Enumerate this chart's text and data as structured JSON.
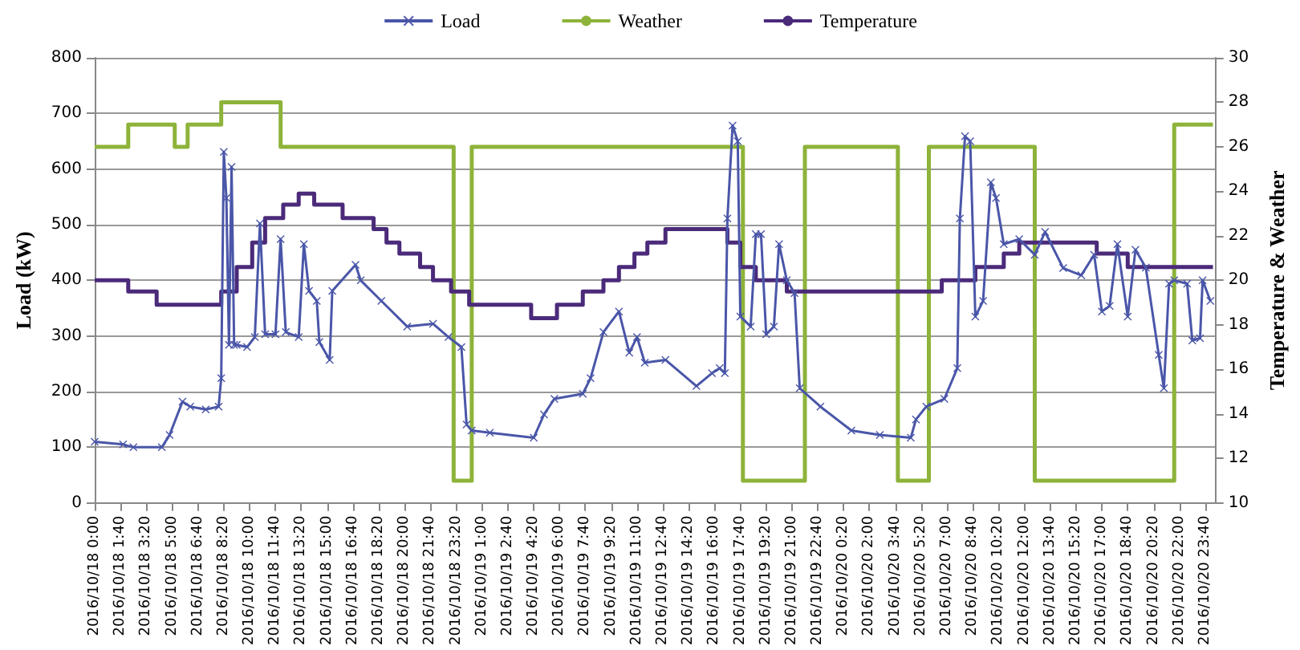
{
  "chart_data": {
    "type": "line",
    "ylabel": "Load (kW)",
    "y2label": "Temperature & Weather",
    "legend": "top",
    "grid": "y",
    "xlim": [
      "2016-10-18T00:00",
      "2016-10-21T00:20"
    ],
    "xticks": [
      {
        "value": "2016-10-18T00:00",
        "label": "2016/10/18 0:00"
      },
      {
        "value": "2016-10-18T01:40",
        "label": "2016/10/18 1:40"
      },
      {
        "value": "2016-10-18T03:20",
        "label": "2016/10/18 3:20"
      },
      {
        "value": "2016-10-18T05:00",
        "label": "2016/10/18 5:00"
      },
      {
        "value": "2016-10-18T06:40",
        "label": "2016/10/18 6:40"
      },
      {
        "value": "2016-10-18T08:20",
        "label": "2016/10/18 8:20"
      },
      {
        "value": "2016-10-18T10:00",
        "label": "2016/10/18 10:00"
      },
      {
        "value": "2016-10-18T11:40",
        "label": "2016/10/18 11:40"
      },
      {
        "value": "2016-10-18T13:20",
        "label": "2016/10/18 13:20"
      },
      {
        "value": "2016-10-18T15:00",
        "label": "2016/10/18 15:00"
      },
      {
        "value": "2016-10-18T16:40",
        "label": "2016/10/18 16:40"
      },
      {
        "value": "2016-10-18T18:20",
        "label": "2016/10/18 18:20"
      },
      {
        "value": "2016-10-18T20:00",
        "label": "2016/10/18 20:00"
      },
      {
        "value": "2016-10-18T21:40",
        "label": "2016/10/18 21:40"
      },
      {
        "value": "2016-10-18T23:20",
        "label": "2016/10/18 23:20"
      },
      {
        "value": "2016-10-19T01:00",
        "label": "2016/10/19 1:00"
      },
      {
        "value": "2016-10-19T02:40",
        "label": "2016/10/19 2:40"
      },
      {
        "value": "2016-10-19T04:20",
        "label": "2016/10/19 4:20"
      },
      {
        "value": "2016-10-19T06:00",
        "label": "2016/10/19 6:00"
      },
      {
        "value": "2016-10-19T07:40",
        "label": "2016/10/19 7:40"
      },
      {
        "value": "2016-10-19T09:20",
        "label": "2016/10/19 9:20"
      },
      {
        "value": "2016-10-19T11:00",
        "label": "2016/10/19 11:00"
      },
      {
        "value": "2016-10-19T12:40",
        "label": "2016/10/19 12:40"
      },
      {
        "value": "2016-10-19T14:20",
        "label": "2016/10/19 14:20"
      },
      {
        "value": "2016-10-19T16:00",
        "label": "2016/10/19 16:00"
      },
      {
        "value": "2016-10-19T17:40",
        "label": "2016/10/19 17:40"
      },
      {
        "value": "2016-10-19T19:20",
        "label": "2016/10/19 19:20"
      },
      {
        "value": "2016-10-19T21:00",
        "label": "2016/10/19 21:00"
      },
      {
        "value": "2016-10-19T22:40",
        "label": "2016/10/19 22:40"
      },
      {
        "value": "2016-10-20T00:20",
        "label": "2016/10/20 0:20"
      },
      {
        "value": "2016-10-20T02:00",
        "label": "2016/10/20 2:00"
      },
      {
        "value": "2016-10-20T03:40",
        "label": "2016/10/20 3:40"
      },
      {
        "value": "2016-10-20T05:20",
        "label": "2016/10/20 5:20"
      },
      {
        "value": "2016-10-20T07:00",
        "label": "2016/10/20 7:00"
      },
      {
        "value": "2016-10-20T08:40",
        "label": "2016/10/20 8:40"
      },
      {
        "value": "2016-10-20T10:20",
        "label": "2016/10/20 10:20"
      },
      {
        "value": "2016-10-20T12:00",
        "label": "2016/10/20 12:00"
      },
      {
        "value": "2016-10-20T13:40",
        "label": "2016/10/20 13:40"
      },
      {
        "value": "2016-10-20T15:20",
        "label": "2016/10/20 15:20"
      },
      {
        "value": "2016-10-20T17:00",
        "label": "2016/10/20 17:00"
      },
      {
        "value": "2016-10-20T18:40",
        "label": "2016/10/20 18:40"
      },
      {
        "value": "2016-10-20T20:20",
        "label": "2016/10/20 20:20"
      },
      {
        "value": "2016-10-20T22:00",
        "label": "2016/10/20 22:00"
      },
      {
        "value": "2016-10-20T23:40",
        "label": "2016/10/20 23:40"
      }
    ],
    "ylim": [
      0,
      800
    ],
    "yticks": [
      0,
      100,
      200,
      300,
      400,
      500,
      600,
      700,
      800
    ],
    "y2lim": [
      10,
      30
    ],
    "y2ticks": [
      10,
      12,
      14,
      16,
      18,
      20,
      22,
      24,
      26,
      28,
      30
    ],
    "series": [
      {
        "name": "Load",
        "color": "#4a56a8",
        "marker": "cross",
        "x": [
          "2016-10-18T00:00",
          "2016-10-18T01:50",
          "2016-10-18T02:30",
          "2016-10-18T04:20",
          "2016-10-18T04:50",
          "2016-10-18T05:40",
          "2016-10-18T06:10",
          "2016-10-18T07:10",
          "2016-10-18T08:00",
          "2016-10-18T08:10",
          "2016-10-18T08:20",
          "2016-10-18T08:30",
          "2016-10-18T08:40",
          "2016-10-18T08:50",
          "2016-10-18T09:00",
          "2016-10-18T09:10",
          "2016-10-18T09:50",
          "2016-10-18T10:20",
          "2016-10-18T10:40",
          "2016-10-18T11:00",
          "2016-10-18T11:40",
          "2016-10-18T12:00",
          "2016-10-18T12:20",
          "2016-10-18T13:10",
          "2016-10-18T13:30",
          "2016-10-18T13:50",
          "2016-10-18T14:20",
          "2016-10-18T14:30",
          "2016-10-18T15:10",
          "2016-10-18T15:20",
          "2016-10-18T16:50",
          "2016-10-18T17:10",
          "2016-10-18T18:30",
          "2016-10-18T20:10",
          "2016-10-18T21:50",
          "2016-10-18T22:50",
          "2016-10-18T23:40",
          "2016-10-19T00:00",
          "2016-10-19T00:20",
          "2016-10-19T01:30",
          "2016-10-19T04:20",
          "2016-10-19T05:00",
          "2016-10-19T05:40",
          "2016-10-19T07:30",
          "2016-10-19T08:00",
          "2016-10-19T08:50",
          "2016-10-19T09:50",
          "2016-10-19T10:30",
          "2016-10-19T11:00",
          "2016-10-19T11:30",
          "2016-10-19T12:50",
          "2016-10-19T14:50",
          "2016-10-19T15:50",
          "2016-10-19T16:20",
          "2016-10-19T16:40",
          "2016-10-19T16:50",
          "2016-10-19T17:10",
          "2016-10-19T17:30",
          "2016-10-19T17:40",
          "2016-10-19T18:20",
          "2016-10-19T18:40",
          "2016-10-19T19:00",
          "2016-10-19T19:20",
          "2016-10-19T19:50",
          "2016-10-19T20:10",
          "2016-10-19T20:40",
          "2016-10-19T21:10",
          "2016-10-19T21:30",
          "2016-10-19T22:50",
          "2016-10-20T00:50",
          "2016-10-20T02:40",
          "2016-10-20T04:40",
          "2016-10-20T05:00",
          "2016-10-20T05:40",
          "2016-10-20T06:50",
          "2016-10-20T07:40",
          "2016-10-20T07:50",
          "2016-10-20T08:10",
          "2016-10-20T08:30",
          "2016-10-20T08:50",
          "2016-10-20T09:20",
          "2016-10-20T09:50",
          "2016-10-20T10:10",
          "2016-10-20T10:40",
          "2016-10-20T11:40",
          "2016-10-20T12:40",
          "2016-10-20T13:20",
          "2016-10-20T14:30",
          "2016-10-20T15:40",
          "2016-10-20T16:30",
          "2016-10-20T17:00",
          "2016-10-20T17:30",
          "2016-10-20T18:00",
          "2016-10-20T18:40",
          "2016-10-20T19:10",
          "2016-10-20T19:50",
          "2016-10-20T20:40",
          "2016-10-20T21:00",
          "2016-10-20T21:20",
          "2016-10-20T21:40",
          "2016-10-20T22:30",
          "2016-10-20T22:50",
          "2016-10-20T23:20",
          "2016-10-20T23:30",
          "2016-10-21T00:00"
        ],
        "values": [
          110,
          105,
          100,
          100,
          122,
          182,
          173,
          168,
          173,
          224,
          631,
          548,
          284,
          604,
          284,
          284,
          280,
          298,
          502,
          303,
          303,
          474,
          307,
          298,
          465,
          381,
          363,
          289,
          257,
          381,
          428,
          400,
          363,
          317,
          322,
          298,
          280,
          141,
          130,
          126,
          117,
          159,
          187,
          196,
          224,
          307,
          344,
          270,
          298,
          252,
          257,
          210,
          233,
          242,
          233,
          511,
          678,
          650,
          335,
          317,
          483,
          483,
          303,
          317,
          465,
          400,
          377,
          206,
          173,
          130,
          122,
          117,
          150,
          173,
          187,
          242,
          511,
          659,
          650,
          335,
          363,
          576,
          548,
          465,
          474,
          446,
          487,
          422,
          409,
          446,
          344,
          354,
          465,
          335,
          455,
          423,
          266,
          206,
          394,
          400,
          394,
          292,
          296,
          400,
          363
        ]
      },
      {
        "name": "Weather",
        "type": "step",
        "axis": "y2",
        "color": "#8db33a",
        "marker": "none",
        "x": [
          "2016-10-18T00:00",
          "2016-10-18T02:10",
          "2016-10-18T05:10",
          "2016-10-18T06:00",
          "2016-10-18T08:10",
          "2016-10-18T12:00",
          "2016-10-18T23:10",
          "2016-10-19T00:20",
          "2016-10-19T17:50",
          "2016-10-19T21:50",
          "2016-10-20T03:50",
          "2016-10-20T05:50",
          "2016-10-20T12:40",
          "2016-10-20T21:40",
          "2016-10-21T00:10"
        ],
        "values": [
          26,
          27,
          26,
          27,
          28,
          26,
          11,
          26,
          11,
          26,
          11,
          26,
          11,
          27,
          27
        ]
      },
      {
        "name": "Temperature",
        "type": "step",
        "axis": "y2",
        "color": "#4b2a7a",
        "marker": "none",
        "x": [
          "2016-10-18T00:00",
          "2016-10-18T02:10",
          "2016-10-18T04:00",
          "2016-10-18T08:10",
          "2016-10-18T09:10",
          "2016-10-18T10:10",
          "2016-10-18T11:00",
          "2016-10-18T12:10",
          "2016-10-18T13:10",
          "2016-10-18T14:10",
          "2016-10-18T16:00",
          "2016-10-18T18:00",
          "2016-10-18T18:50",
          "2016-10-18T19:40",
          "2016-10-18T21:00",
          "2016-10-18T21:50",
          "2016-10-18T23:00",
          "2016-10-19T00:10",
          "2016-10-19T04:10",
          "2016-10-19T05:50",
          "2016-10-19T07:30",
          "2016-10-19T08:50",
          "2016-10-19T09:50",
          "2016-10-19T10:50",
          "2016-10-19T11:40",
          "2016-10-19T12:50",
          "2016-10-19T16:50",
          "2016-10-19T17:40",
          "2016-10-19T18:40",
          "2016-10-19T20:40",
          "2016-10-20T06:40",
          "2016-10-20T08:50",
          "2016-10-20T10:40",
          "2016-10-20T11:40",
          "2016-10-20T16:40",
          "2016-10-20T18:40",
          "2016-10-21T00:10"
        ],
        "values": [
          20.0,
          19.5,
          18.9,
          19.5,
          20.6,
          21.7,
          22.8,
          23.4,
          23.9,
          23.4,
          22.8,
          22.3,
          21.7,
          21.2,
          20.6,
          20.0,
          19.5,
          18.9,
          18.3,
          18.9,
          19.5,
          20.0,
          20.6,
          21.2,
          21.7,
          22.3,
          21.7,
          20.6,
          20.0,
          19.5,
          20.0,
          20.6,
          21.2,
          21.7,
          21.2,
          20.6,
          20.6
        ]
      }
    ]
  }
}
